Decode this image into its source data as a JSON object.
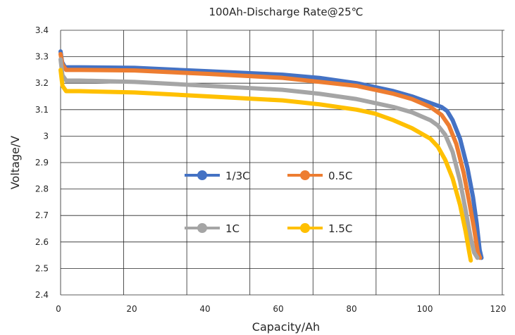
{
  "chart_data": {
    "type": "line",
    "title": "100Ah-Discharge Rate@25℃",
    "xlabel": "Capacity/Ah",
    "ylabel": "Voltage/V",
    "xlim": [
      0,
      120
    ],
    "ylim": [
      2.4,
      3.4
    ],
    "x_ticks": [
      0,
      20,
      40,
      60,
      80,
      100,
      120
    ],
    "y_ticks": [
      2.4,
      2.5,
      2.6,
      2.7,
      2.8,
      2.9,
      3,
      3.1,
      3.2,
      3.3,
      3.4
    ],
    "x_grid_lines": [
      0,
      17.06,
      34.12,
      51.18,
      68.24,
      85.3,
      102.36,
      119.42
    ],
    "grid": true,
    "legend_position": "center",
    "series": [
      {
        "name": "1/3C",
        "color": "#4472C4",
        "points": [
          [
            0,
            3.32
          ],
          [
            0.4,
            3.28
          ],
          [
            1.2,
            3.26
          ],
          [
            5,
            3.26
          ],
          [
            20,
            3.258
          ],
          [
            40,
            3.245
          ],
          [
            60,
            3.232
          ],
          [
            70,
            3.22
          ],
          [
            80,
            3.2
          ],
          [
            90,
            3.17
          ],
          [
            95,
            3.15
          ],
          [
            100,
            3.125
          ],
          [
            103,
            3.11
          ],
          [
            104.5,
            3.095
          ],
          [
            106,
            3.06
          ],
          [
            108,
            2.99
          ],
          [
            110,
            2.88
          ],
          [
            111.5,
            2.77
          ],
          [
            112.5,
            2.67
          ],
          [
            113.3,
            2.57
          ],
          [
            113.8,
            2.54
          ]
        ]
      },
      {
        "name": "0.5C",
        "color": "#ED7D31",
        "points": [
          [
            0,
            3.31
          ],
          [
            0.5,
            3.27
          ],
          [
            1.5,
            3.25
          ],
          [
            5,
            3.25
          ],
          [
            20,
            3.248
          ],
          [
            40,
            3.235
          ],
          [
            60,
            3.22
          ],
          [
            70,
            3.205
          ],
          [
            80,
            3.19
          ],
          [
            90,
            3.16
          ],
          [
            95,
            3.14
          ],
          [
            100,
            3.11
          ],
          [
            103,
            3.08
          ],
          [
            105,
            3.04
          ],
          [
            107,
            2.97
          ],
          [
            109,
            2.86
          ],
          [
            110.5,
            2.75
          ],
          [
            111.8,
            2.65
          ],
          [
            112.8,
            2.56
          ],
          [
            113.4,
            2.54
          ]
        ]
      },
      {
        "name": "1C",
        "color": "#A5A5A5",
        "points": [
          [
            0,
            3.29
          ],
          [
            0.5,
            3.23
          ],
          [
            1.5,
            3.21
          ],
          [
            5,
            3.21
          ],
          [
            20,
            3.205
          ],
          [
            40,
            3.19
          ],
          [
            60,
            3.175
          ],
          [
            70,
            3.16
          ],
          [
            80,
            3.14
          ],
          [
            90,
            3.11
          ],
          [
            95,
            3.09
          ],
          [
            100,
            3.06
          ],
          [
            102,
            3.04
          ],
          [
            104,
            3.005
          ],
          [
            106,
            2.94
          ],
          [
            108,
            2.83
          ],
          [
            109.5,
            2.72
          ],
          [
            110.8,
            2.62
          ],
          [
            111.8,
            2.56
          ],
          [
            112.7,
            2.54
          ]
        ]
      },
      {
        "name": "1.5C",
        "color": "#FFC000",
        "points": [
          [
            0,
            3.25
          ],
          [
            0.5,
            3.19
          ],
          [
            1.5,
            3.17
          ],
          [
            5,
            3.17
          ],
          [
            20,
            3.165
          ],
          [
            40,
            3.15
          ],
          [
            60,
            3.135
          ],
          [
            70,
            3.12
          ],
          [
            80,
            3.1
          ],
          [
            85,
            3.085
          ],
          [
            90,
            3.06
          ],
          [
            95,
            3.03
          ],
          [
            100,
            2.99
          ],
          [
            102,
            2.96
          ],
          [
            104,
            2.91
          ],
          [
            106,
            2.84
          ],
          [
            108,
            2.74
          ],
          [
            109.5,
            2.64
          ],
          [
            110.5,
            2.56
          ],
          [
            110.9,
            2.53
          ]
        ]
      }
    ]
  }
}
